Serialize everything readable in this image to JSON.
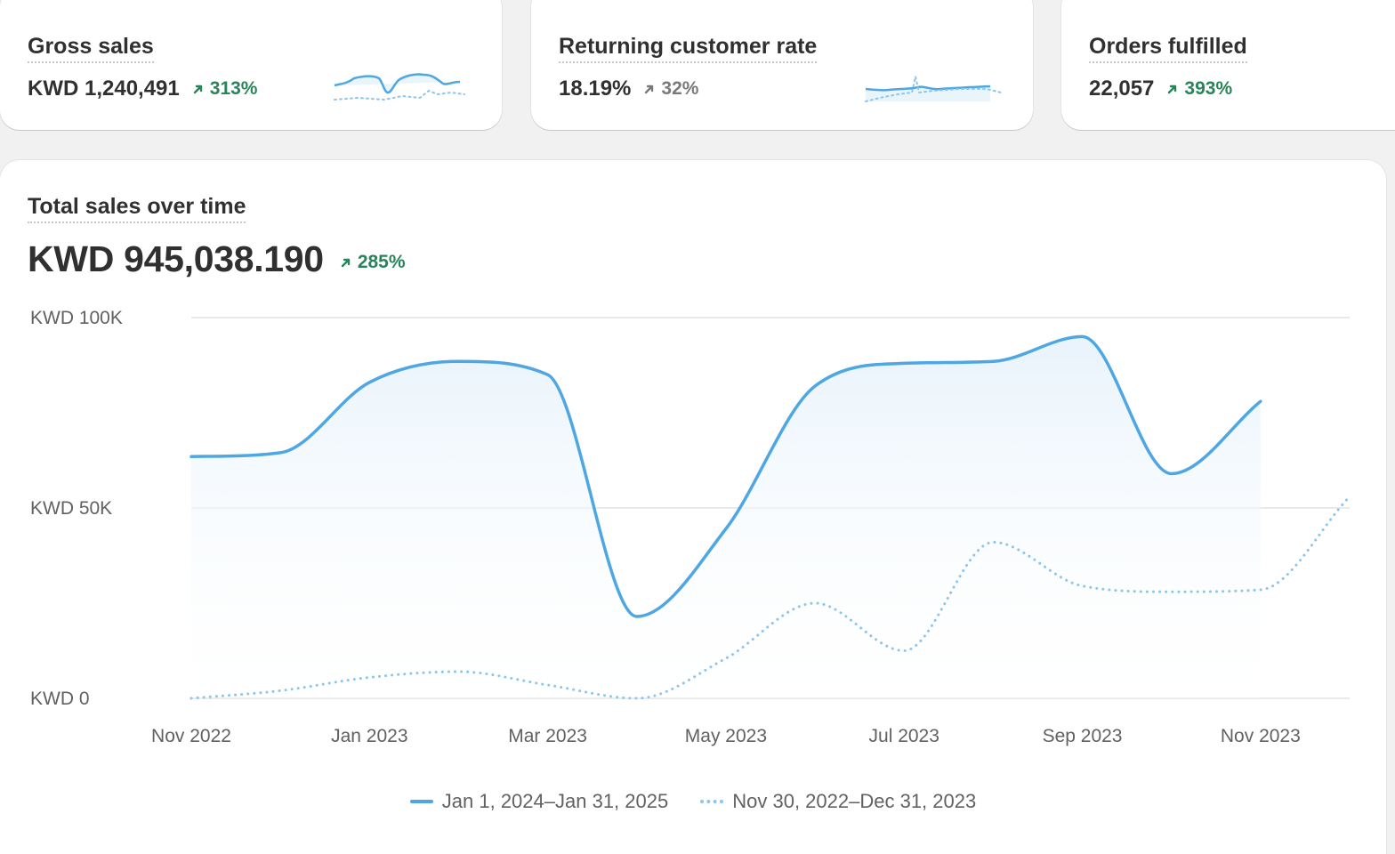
{
  "kpis": [
    {
      "title": "Gross sales",
      "value": "KWD 1,240,491",
      "delta": "313%",
      "delta_direction": "up",
      "delta_color": "#29845a",
      "arrow_icon": "arrow-up-right-icon"
    },
    {
      "title": "Returning customer rate",
      "value": "18.19%",
      "delta": "32%",
      "delta_direction": "up",
      "delta_color": "#7a7a7a",
      "arrow_icon": "arrow-up-right-icon"
    },
    {
      "title": "Orders fulfilled",
      "value": "22,057",
      "delta": "393%",
      "delta_direction": "up",
      "delta_color": "#29845a",
      "arrow_icon": "arrow-up-right-icon"
    }
  ],
  "main": {
    "title": "Total sales over time",
    "value": "KWD 945,038.190",
    "delta": "285%",
    "delta_color": "#29845a",
    "legend": [
      {
        "label": "Jan 1, 2024–Jan 31, 2025",
        "style": "solid"
      },
      {
        "label": "Nov 30, 2022–Dec 31, 2023",
        "style": "dotted"
      }
    ]
  },
  "colors": {
    "current_series": "#4ea7e3",
    "previous_series": "#8cc6ea",
    "positive": "#29845a",
    "neutral": "#7a7a7a",
    "card_background": "#ffffff",
    "page_background": "#f1f1f1"
  },
  "chart_data": {
    "type": "line",
    "title": "Total sales over time",
    "xlabel": "",
    "ylabel": "",
    "ylim": [
      0,
      100000
    ],
    "yticks": [
      0,
      50000,
      100000
    ],
    "ytick_labels": [
      "KWD 0",
      "KWD 50K",
      "KWD 100K"
    ],
    "xlim": [
      0,
      13
    ],
    "xticks": [
      0,
      2,
      4,
      6,
      8,
      10,
      12
    ],
    "xtick_labels": [
      "Nov 2022",
      "Jan 2023",
      "Mar 2023",
      "May 2023",
      "Jul 2023",
      "Sep 2023",
      "Nov 2023"
    ],
    "grid": true,
    "legend_position": "bottom-center",
    "series": [
      {
        "name": "Jan 1, 2024–Jan 31, 2025",
        "style": "solid",
        "x": [
          0,
          1,
          2,
          3,
          4,
          5,
          6,
          7,
          8,
          9,
          10,
          11,
          12
        ],
        "y": [
          63500,
          64500,
          83000,
          88500,
          85000,
          21500,
          44500,
          82000,
          88000,
          88500,
          95000,
          59000,
          78000
        ]
      },
      {
        "name": "Nov 30, 2022–Dec 31, 2023",
        "style": "dotted",
        "x": [
          0,
          1,
          2,
          3,
          4,
          5,
          6,
          7,
          8,
          9,
          10,
          11,
          12,
          13
        ],
        "y": [
          0,
          2000,
          5500,
          7000,
          3500,
          0,
          10500,
          25000,
          12500,
          41000,
          29500,
          28000,
          28500,
          53000
        ]
      }
    ]
  }
}
